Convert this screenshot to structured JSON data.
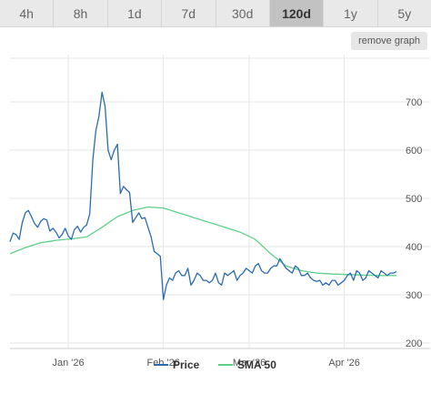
{
  "tabs": [
    {
      "label": "4h",
      "active": false
    },
    {
      "label": "8h",
      "active": false
    },
    {
      "label": "1d",
      "active": false
    },
    {
      "label": "7d",
      "active": false
    },
    {
      "label": "30d",
      "active": false
    },
    {
      "label": "120d",
      "active": true
    },
    {
      "label": "1y",
      "active": false
    },
    {
      "label": "5y",
      "active": false
    }
  ],
  "toolbar": {
    "remove_graph_label": "remove graph"
  },
  "colors": {
    "price": "#2a6bb1",
    "sma": "#5fd08a",
    "grid": "#e6e6e6"
  },
  "chart_data": {
    "type": "line",
    "title": "",
    "xlabel": "",
    "ylabel": "",
    "ylim": [
      200,
      720
    ],
    "yticks": [
      200,
      300,
      400,
      500,
      600,
      700
    ],
    "ytick_labels": [
      "200",
      "300",
      "400",
      "500",
      "600",
      "700"
    ],
    "xtick_labels": [
      {
        "label": "Jan '26",
        "day": 19
      },
      {
        "label": "Feb '26",
        "day": 50
      },
      {
        "label": "Mar '26",
        "day": 78
      },
      {
        "label": "Apr '26",
        "day": 109
      }
    ],
    "x_range_days": [
      0,
      126
    ],
    "grid": true,
    "legend": "bottom-center",
    "series": [
      {
        "name": "Price",
        "color": "#2a6bb1",
        "x": [
          0,
          1,
          2,
          3,
          4,
          5,
          6,
          7,
          8,
          9,
          10,
          11,
          12,
          13,
          14,
          15,
          16,
          17,
          18,
          19,
          20,
          21,
          22,
          23,
          24,
          25,
          26,
          27,
          28,
          29,
          30,
          31,
          32,
          33,
          34,
          35,
          36,
          37,
          38,
          39,
          40,
          41,
          42,
          43,
          44,
          45,
          46,
          47,
          48,
          49,
          50,
          51,
          52,
          53,
          54,
          55,
          56,
          57,
          58,
          59,
          60,
          61,
          62,
          63,
          64,
          65,
          66,
          67,
          68,
          69,
          70,
          71,
          72,
          73,
          74,
          75,
          76,
          77,
          78,
          79,
          80,
          81,
          82,
          83,
          84,
          85,
          86,
          87,
          88,
          89,
          90,
          91,
          92,
          93,
          94,
          95,
          96,
          97,
          98,
          99,
          100,
          101,
          102,
          103,
          104,
          105,
          106,
          107,
          108,
          109,
          110,
          111,
          112,
          113,
          114,
          115,
          116,
          117,
          118,
          119,
          120,
          121,
          122,
          123,
          124,
          125,
          126
        ],
        "values": [
          410,
          428,
          425,
          415,
          450,
          470,
          475,
          462,
          448,
          440,
          452,
          458,
          455,
          432,
          438,
          430,
          418,
          425,
          438,
          422,
          415,
          435,
          442,
          430,
          440,
          445,
          468,
          580,
          640,
          670,
          720,
          690,
          600,
          580,
          600,
          612,
          510,
          525,
          518,
          512,
          450,
          460,
          470,
          458,
          460,
          440,
          420,
          390,
          385,
          380,
          290,
          320,
          335,
          330,
          345,
          350,
          340,
          340,
          355,
          320,
          330,
          345,
          340,
          330,
          330,
          325,
          330,
          345,
          325,
          320,
          345,
          340,
          345,
          350,
          330,
          340,
          345,
          355,
          350,
          345,
          360,
          365,
          350,
          345,
          345,
          355,
          360,
          360,
          375,
          365,
          355,
          350,
          345,
          360,
          355,
          340,
          340,
          345,
          335,
          330,
          328,
          330,
          320,
          325,
          320,
          330,
          330,
          320,
          325,
          330,
          340,
          345,
          330,
          350,
          345,
          330,
          335,
          350,
          345,
          340,
          335,
          350,
          345,
          340,
          345,
          345,
          348
        ]
      },
      {
        "name": "SMA 50",
        "color": "#5fd08a",
        "x": [
          0,
          5,
          10,
          15,
          20,
          25,
          30,
          35,
          40,
          45,
          50,
          55,
          60,
          65,
          70,
          75,
          80,
          85,
          90,
          95,
          100,
          105,
          110,
          115,
          120,
          126
        ],
        "values": [
          385,
          398,
          408,
          413,
          416,
          420,
          440,
          462,
          475,
          482,
          480,
          470,
          460,
          450,
          440,
          430,
          415,
          385,
          360,
          350,
          345,
          343,
          342,
          341,
          340,
          340
        ]
      }
    ]
  }
}
